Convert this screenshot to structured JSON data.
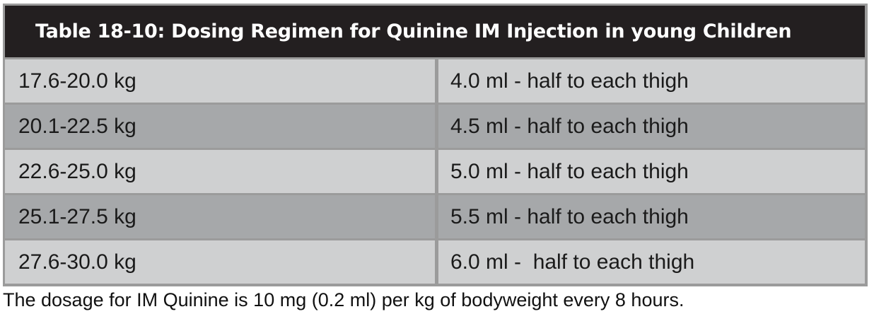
{
  "table": {
    "title": "Table 18-10:  Dosing Regimen for Quinine IM Injection in young Children",
    "rows": [
      {
        "weight": "17.6-20.0 kg",
        "dose": "4.0 ml - half to each thigh"
      },
      {
        "weight": "20.1-22.5 kg",
        "dose": "4.5 ml - half to each thigh"
      },
      {
        "weight": "22.6-25.0 kg",
        "dose": "5.0 ml - half to each thigh"
      },
      {
        "weight": "25.1-27.5 kg",
        "dose": "5.5 ml - half to each thigh"
      },
      {
        "weight": "27.6-30.0 kg",
        "dose": "6.0 ml -  half to each thigh"
      }
    ]
  },
  "footnote": "The dosage for IM Quinine is 10 mg (0.2 ml) per kg of bodyweight every 8 hours.",
  "colors": {
    "header_bg": "#231f20",
    "header_text": "#ffffff",
    "row_light": "#cfd0d1",
    "row_dark": "#a6a8aa",
    "grid": "#9b9b9b"
  }
}
